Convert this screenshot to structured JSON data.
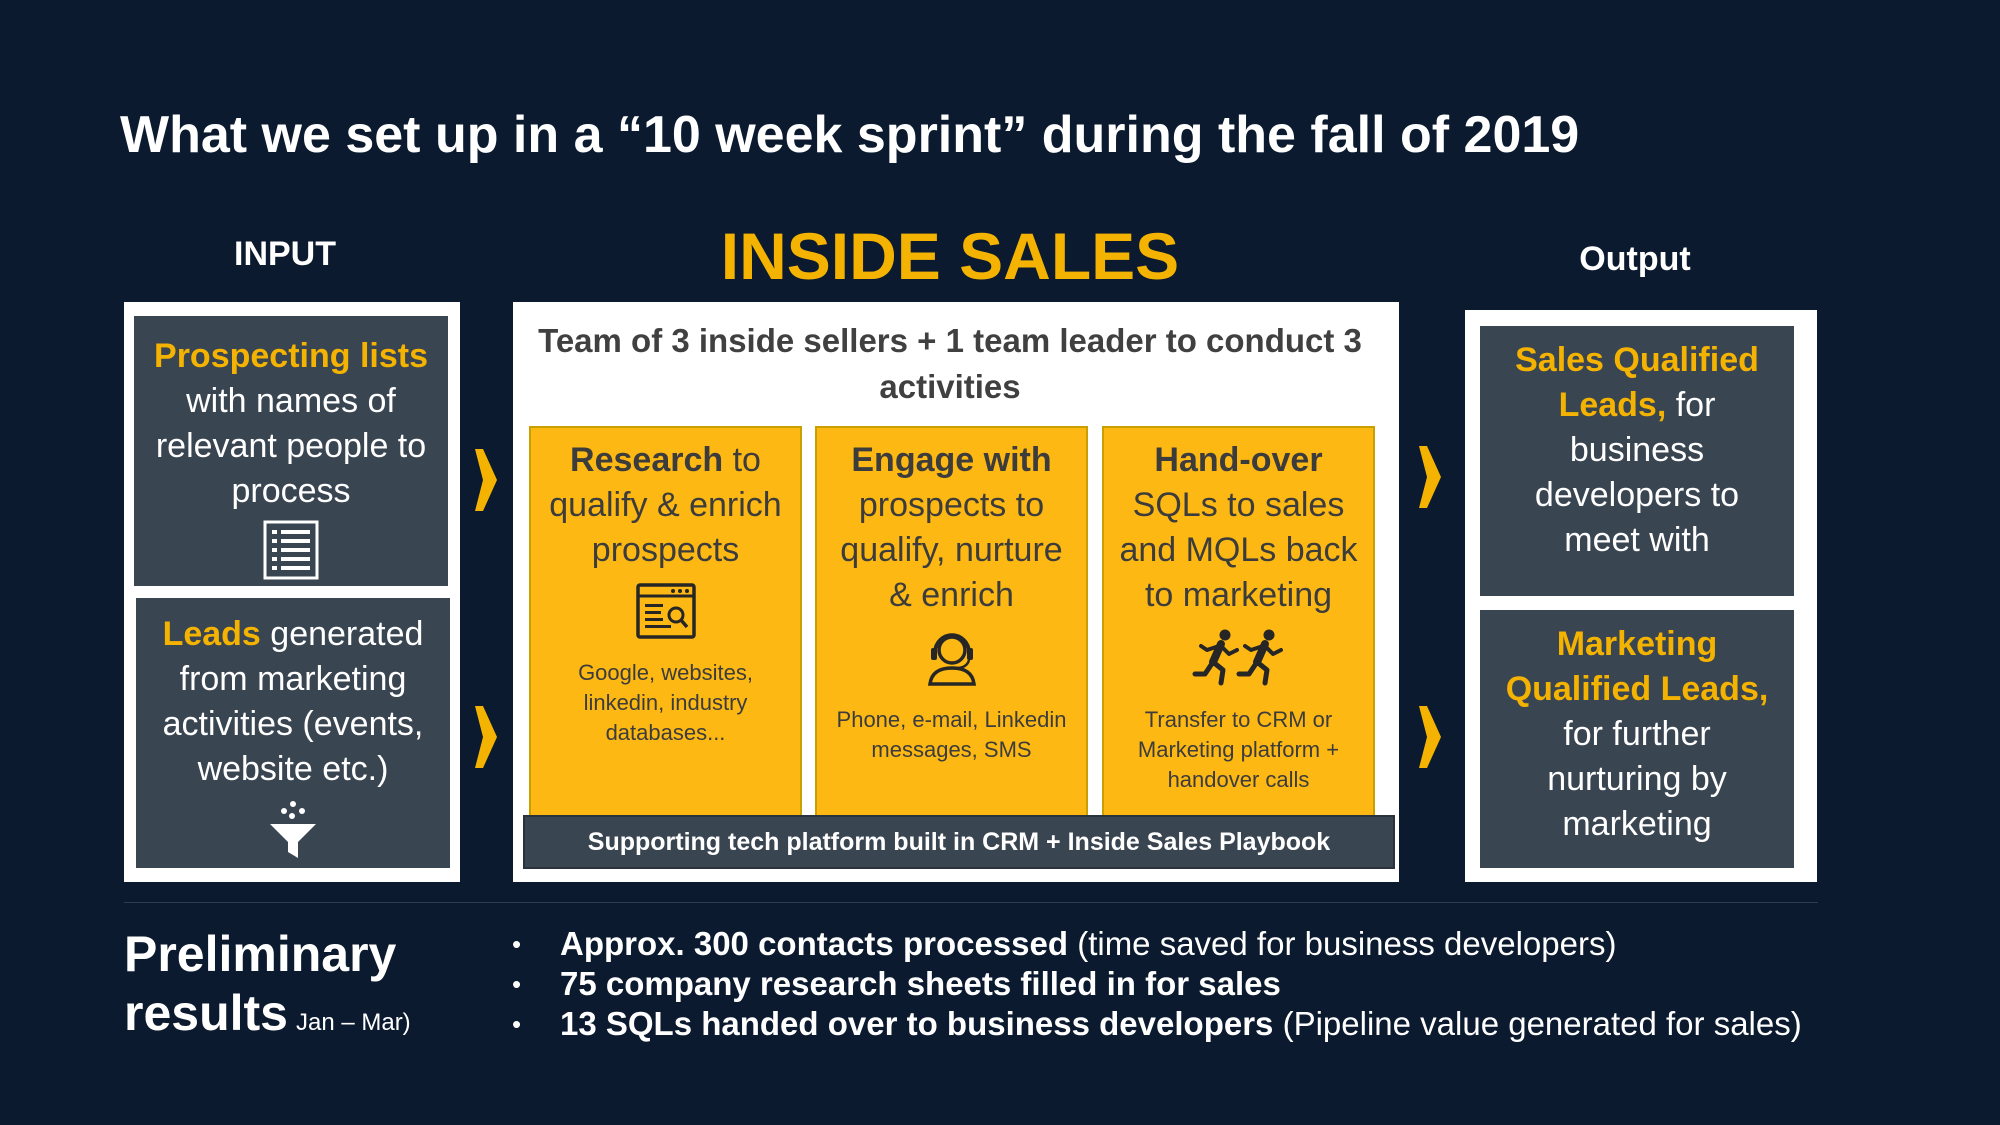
{
  "title": "What we set up in a “10 week sprint” during the fall of 2019",
  "colors": {
    "background": "#0b1a2e",
    "accent": "#f5b301",
    "card": "#3a4552",
    "activity": "#fdb813"
  },
  "input": {
    "header": "INPUT",
    "cards": [
      {
        "highlight": "Prospecting lists",
        "text": "with names of relevant people to process",
        "icon": "document-list-icon"
      },
      {
        "highlight": "Leads",
        "text": "generated from marketing activities (events, website etc.)",
        "icon": "funnel-icon"
      }
    ]
  },
  "center": {
    "title": "INSIDE SALES",
    "team_text": "Team of 3 inside sellers + 1 team leader to conduct 3 activities",
    "activities": [
      {
        "bold": "Research",
        "text": "to qualify & enrich prospects",
        "icon": "web-search-icon",
        "detail": "Google, websites, linkedin, industry databases..."
      },
      {
        "bold": "Engage with",
        "text": "prospects to qualify, nurture & enrich",
        "icon": "headset-agent-icon",
        "detail": "Phone, e-mail, Linkedin messages, SMS"
      },
      {
        "bold": "Hand-over",
        "text": "SQLs to sales and MQLs back to marketing",
        "icon": "running-people-icon",
        "detail": "Transfer to CRM or Marketing platform + handover calls"
      }
    ],
    "platform": "Supporting tech platform built in CRM + Inside Sales Playbook"
  },
  "output": {
    "header": "Output",
    "cards": [
      {
        "highlight": "Sales Qualified Leads,",
        "text": "for business developers to meet with"
      },
      {
        "highlight": "Marketing Qualified Leads,",
        "text": "for further nurturing by marketing"
      }
    ]
  },
  "results": {
    "title_line1": "Preliminary",
    "title_line2": "results",
    "period": "Jan – Mar)",
    "items": [
      {
        "bold": "Approx. 300 contacts processed",
        "rest": "(time saved for business developers)"
      },
      {
        "bold": "75 company research sheets filled in for sales",
        "rest": ""
      },
      {
        "bold": "13 SQLs handed over to business developers",
        "rest": "(Pipeline value generated for sales)"
      }
    ]
  }
}
